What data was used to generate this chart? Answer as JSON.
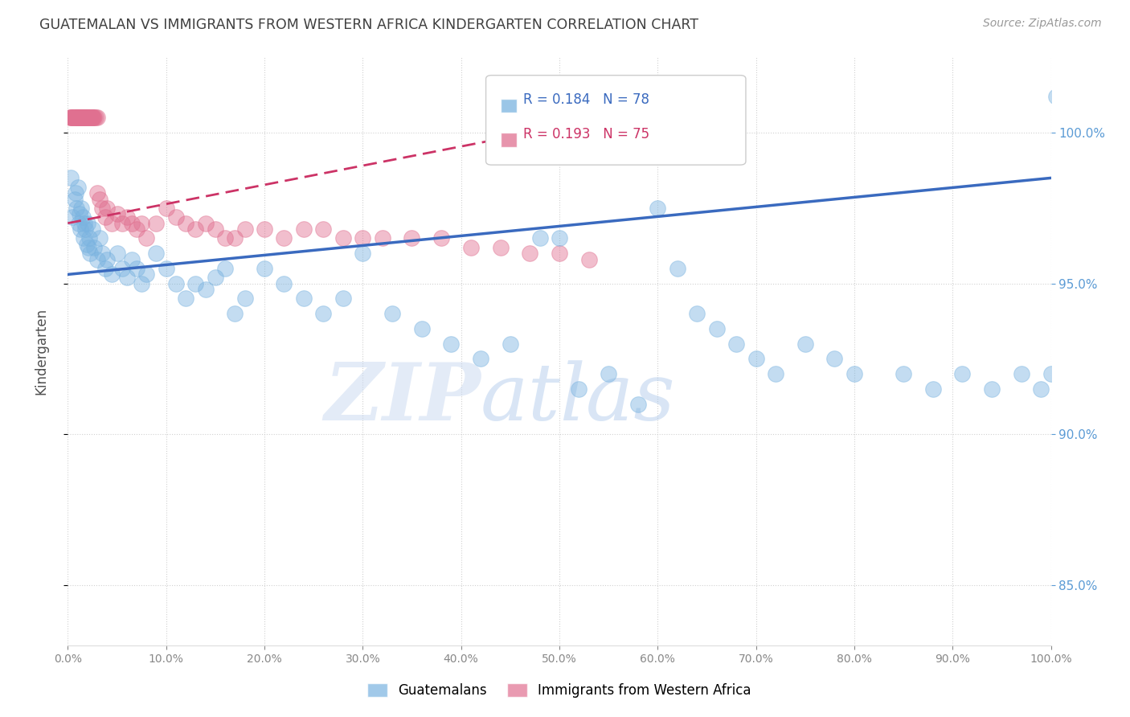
{
  "title": "GUATEMALAN VS IMMIGRANTS FROM WESTERN AFRICA KINDERGARTEN CORRELATION CHART",
  "source": "Source: ZipAtlas.com",
  "ylabel": "Kindergarten",
  "blue_label": "Guatemalans",
  "pink_label": "Immigrants from Western Africa",
  "blue_R": 0.184,
  "blue_N": 78,
  "pink_R": 0.193,
  "pink_N": 75,
  "blue_color": "#7ab3e0",
  "pink_color": "#e07090",
  "blue_line_color": "#3a6abf",
  "pink_line_color": "#cc3366",
  "xmin": 0.0,
  "xmax": 100.0,
  "ymin": 83.0,
  "ymax": 102.5,
  "yticks": [
    85.0,
    90.0,
    95.0,
    100.0
  ],
  "xticks": [
    0.0,
    10.0,
    20.0,
    30.0,
    40.0,
    50.0,
    60.0,
    70.0,
    80.0,
    90.0,
    100.0
  ],
  "blue_scatter_x": [
    0.3,
    0.5,
    0.7,
    0.8,
    0.9,
    1.0,
    1.1,
    1.2,
    1.3,
    1.4,
    1.5,
    1.6,
    1.7,
    1.8,
    1.9,
    2.0,
    2.1,
    2.2,
    2.3,
    2.5,
    2.7,
    3.0,
    3.2,
    3.5,
    3.8,
    4.0,
    4.5,
    5.0,
    5.5,
    6.0,
    6.5,
    7.0,
    7.5,
    8.0,
    9.0,
    10.0,
    11.0,
    12.0,
    13.0,
    14.0,
    15.0,
    16.0,
    17.0,
    18.0,
    20.0,
    22.0,
    24.0,
    26.0,
    28.0,
    30.0,
    33.0,
    36.0,
    39.0,
    42.0,
    45.0,
    48.0,
    50.0,
    52.0,
    55.0,
    58.0,
    60.0,
    62.0,
    64.0,
    66.0,
    68.0,
    70.0,
    72.0,
    75.0,
    78.0,
    80.0,
    85.0,
    88.0,
    91.0,
    94.0,
    97.0,
    99.0,
    100.0,
    100.5
  ],
  "blue_scatter_y": [
    98.5,
    97.2,
    97.8,
    98.0,
    97.5,
    98.2,
    97.0,
    97.3,
    96.8,
    97.5,
    97.2,
    96.5,
    97.0,
    96.8,
    96.3,
    97.0,
    96.2,
    96.5,
    96.0,
    96.8,
    96.2,
    95.8,
    96.5,
    96.0,
    95.5,
    95.8,
    95.3,
    96.0,
    95.5,
    95.2,
    95.8,
    95.5,
    95.0,
    95.3,
    96.0,
    95.5,
    95.0,
    94.5,
    95.0,
    94.8,
    95.2,
    95.5,
    94.0,
    94.5,
    95.5,
    95.0,
    94.5,
    94.0,
    94.5,
    96.0,
    94.0,
    93.5,
    93.0,
    92.5,
    93.0,
    96.5,
    96.5,
    91.5,
    92.0,
    91.0,
    97.5,
    95.5,
    94.0,
    93.5,
    93.0,
    92.5,
    92.0,
    93.0,
    92.5,
    92.0,
    92.0,
    91.5,
    92.0,
    91.5,
    92.0,
    91.5,
    92.0,
    101.2
  ],
  "pink_scatter_x": [
    0.2,
    0.3,
    0.4,
    0.5,
    0.5,
    0.6,
    0.7,
    0.8,
    0.9,
    1.0,
    1.0,
    1.1,
    1.2,
    1.3,
    1.4,
    1.5,
    1.5,
    1.6,
    1.7,
    1.8,
    1.9,
    2.0,
    2.1,
    2.2,
    2.3,
    2.4,
    2.5,
    2.6,
    2.7,
    2.8,
    3.0,
    3.2,
    3.5,
    3.8,
    4.0,
    4.5,
    5.0,
    5.5,
    6.0,
    6.5,
    7.0,
    7.5,
    8.0,
    9.0,
    10.0,
    11.0,
    12.0,
    13.0,
    14.0,
    15.0,
    16.0,
    17.0,
    18.0,
    20.0,
    22.0,
    24.0,
    26.0,
    28.0,
    30.0,
    32.0,
    35.0,
    38.0,
    41.0,
    44.0,
    47.0,
    50.0,
    53.0,
    0.8,
    1.0,
    1.2,
    1.5,
    1.8,
    2.0,
    2.5,
    3.0
  ],
  "pink_scatter_y": [
    100.5,
    100.5,
    100.5,
    100.5,
    100.5,
    100.5,
    100.5,
    100.5,
    100.5,
    100.5,
    100.5,
    100.5,
    100.5,
    100.5,
    100.5,
    100.5,
    100.5,
    100.5,
    100.5,
    100.5,
    100.5,
    100.5,
    100.5,
    100.5,
    100.5,
    100.5,
    100.5,
    100.5,
    100.5,
    100.5,
    98.0,
    97.8,
    97.5,
    97.2,
    97.5,
    97.0,
    97.3,
    97.0,
    97.2,
    97.0,
    96.8,
    97.0,
    96.5,
    97.0,
    97.5,
    97.2,
    97.0,
    96.8,
    97.0,
    96.8,
    96.5,
    96.5,
    96.8,
    96.8,
    96.5,
    96.8,
    96.8,
    96.5,
    96.5,
    96.5,
    96.5,
    96.5,
    96.2,
    96.2,
    96.0,
    96.0,
    95.8,
    100.5,
    100.5,
    100.5,
    100.5,
    100.5,
    100.5,
    100.5,
    100.5
  ],
  "blue_trend_x": [
    0.0,
    100.0
  ],
  "blue_trend_y": [
    95.3,
    98.5
  ],
  "pink_trend_x": [
    0.0,
    55.0
  ],
  "pink_trend_y": [
    97.0,
    100.5
  ],
  "watermark_zip": "ZIP",
  "watermark_atlas": "atlas",
  "bg_color": "#ffffff",
  "grid_color": "#cccccc",
  "right_axis_color": "#5b9bd5",
  "title_color": "#404040"
}
